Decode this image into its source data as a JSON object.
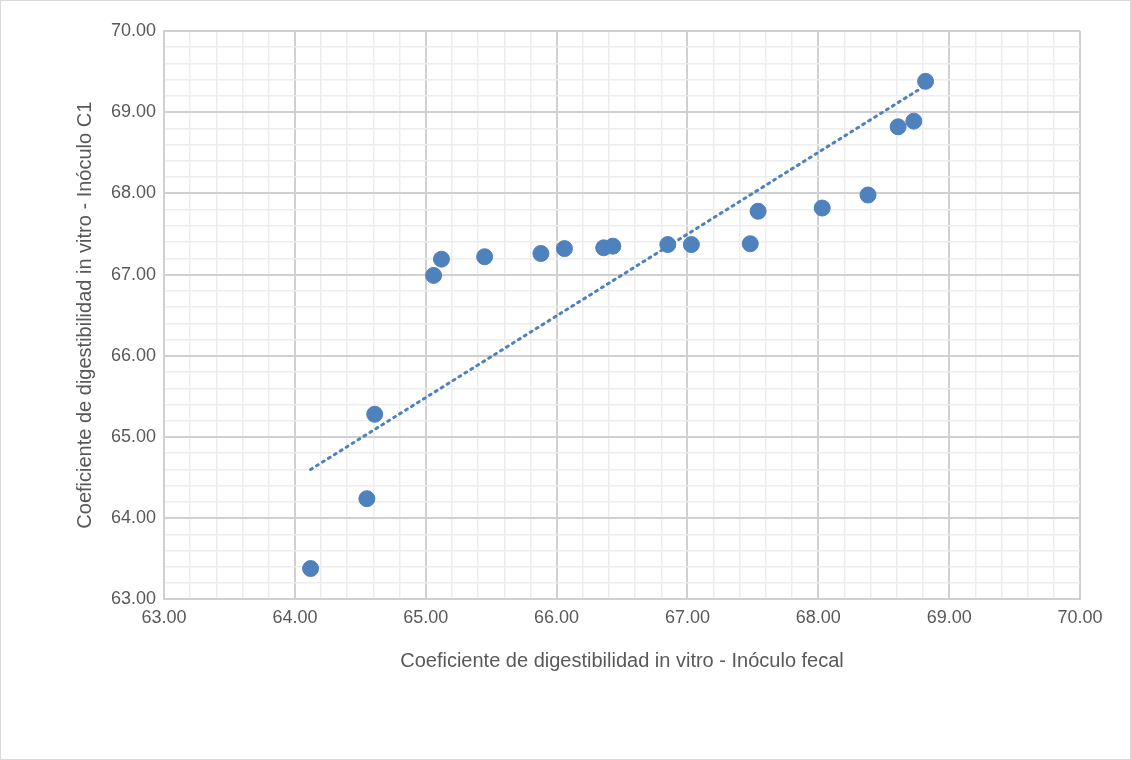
{
  "chart_data": {
    "type": "scatter",
    "xlabel": "Coeficiente de digestibilidad in vitro - Inóculo fecal",
    "ylabel": "Coeficiente de digestibilidad in vitro - Inóculo C1",
    "xlim": [
      63,
      70
    ],
    "ylim": [
      63,
      70
    ],
    "xticks": [
      {
        "value": 63,
        "label": "63.00"
      },
      {
        "value": 63.2,
        "label": null
      },
      {
        "value": 63.4,
        "label": null
      },
      {
        "value": 63.6,
        "label": null
      },
      {
        "value": 63.8,
        "label": null
      },
      {
        "value": 64,
        "label": "64.00"
      },
      {
        "value": 64.2,
        "label": null
      },
      {
        "value": 64.4,
        "label": null
      },
      {
        "value": 64.6,
        "label": null
      },
      {
        "value": 64.8,
        "label": null
      },
      {
        "value": 65,
        "label": "65.00"
      },
      {
        "value": 65.2,
        "label": null
      },
      {
        "value": 65.4,
        "label": null
      },
      {
        "value": 65.6,
        "label": null
      },
      {
        "value": 65.8,
        "label": null
      },
      {
        "value": 66,
        "label": "66.00"
      },
      {
        "value": 66.2,
        "label": null
      },
      {
        "value": 66.4,
        "label": null
      },
      {
        "value": 66.6,
        "label": null
      },
      {
        "value": 66.8,
        "label": null
      },
      {
        "value": 67,
        "label": "67.00"
      },
      {
        "value": 67.2,
        "label": null
      },
      {
        "value": 67.4,
        "label": null
      },
      {
        "value": 67.6,
        "label": null
      },
      {
        "value": 67.8,
        "label": null
      },
      {
        "value": 68,
        "label": "68.00"
      },
      {
        "value": 68.2,
        "label": null
      },
      {
        "value": 68.4,
        "label": null
      },
      {
        "value": 68.6,
        "label": null
      },
      {
        "value": 68.8,
        "label": null
      },
      {
        "value": 69,
        "label": "69.00"
      },
      {
        "value": 69.2,
        "label": null
      },
      {
        "value": 69.4,
        "label": null
      },
      {
        "value": 69.6,
        "label": null
      },
      {
        "value": 69.8,
        "label": null
      },
      {
        "value": 70,
        "label": "70.00"
      }
    ],
    "yticks": [
      {
        "value": 63,
        "label": "63.00"
      },
      {
        "value": 63.2,
        "label": null
      },
      {
        "value": 63.4,
        "label": null
      },
      {
        "value": 63.6,
        "label": null
      },
      {
        "value": 63.8,
        "label": null
      },
      {
        "value": 64,
        "label": "64.00"
      },
      {
        "value": 64.2,
        "label": null
      },
      {
        "value": 64.4,
        "label": null
      },
      {
        "value": 64.6,
        "label": null
      },
      {
        "value": 64.8,
        "label": null
      },
      {
        "value": 65,
        "label": "65.00"
      },
      {
        "value": 65.2,
        "label": null
      },
      {
        "value": 65.4,
        "label": null
      },
      {
        "value": 65.6,
        "label": null
      },
      {
        "value": 65.8,
        "label": null
      },
      {
        "value": 66,
        "label": "66.00"
      },
      {
        "value": 66.2,
        "label": null
      },
      {
        "value": 66.4,
        "label": null
      },
      {
        "value": 66.6,
        "label": null
      },
      {
        "value": 66.8,
        "label": null
      },
      {
        "value": 67,
        "label": "67.00"
      },
      {
        "value": 67.2,
        "label": null
      },
      {
        "value": 67.4,
        "label": null
      },
      {
        "value": 67.6,
        "label": null
      },
      {
        "value": 67.8,
        "label": null
      },
      {
        "value": 68,
        "label": "68.00"
      },
      {
        "value": 68.2,
        "label": null
      },
      {
        "value": 68.4,
        "label": null
      },
      {
        "value": 68.6,
        "label": null
      },
      {
        "value": 68.8,
        "label": null
      },
      {
        "value": 69,
        "label": "69.00"
      },
      {
        "value": 69.2,
        "label": null
      },
      {
        "value": 69.4,
        "label": null
      },
      {
        "value": 69.6,
        "label": null
      },
      {
        "value": 69.8,
        "label": null
      },
      {
        "value": 70,
        "label": "70.00"
      }
    ],
    "grid": true,
    "legend": false,
    "series": [
      {
        "color": "#4f81bd",
        "marker": "circle",
        "x": [
          64.12,
          64.55,
          64.61,
          65.06,
          65.12,
          65.45,
          65.88,
          66.06,
          66.36,
          66.43,
          66.85,
          67.03,
          67.48,
          67.54,
          68.03,
          68.38,
          68.61,
          68.73,
          68.82
        ],
        "values": [
          63.38,
          64.24,
          65.28,
          66.99,
          67.19,
          67.22,
          67.26,
          67.32,
          67.33,
          67.35,
          67.37,
          67.37,
          67.38,
          67.78,
          67.82,
          67.98,
          68.82,
          68.89,
          69.38
        ]
      },
      {
        "type": "line",
        "color": "#4f81bd",
        "marker": "none",
        "line_style": "dotted",
        "x": [
          64.12,
          68.82
        ],
        "values": [
          64.6,
          69.33
        ]
      }
    ]
  }
}
